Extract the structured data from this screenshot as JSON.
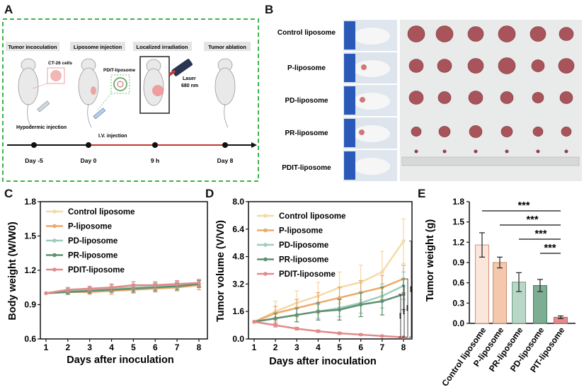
{
  "panels": {
    "a": "A",
    "b": "B",
    "c": "C",
    "d": "D",
    "e": "E"
  },
  "schematic": {
    "stages": [
      "Tumor incoculation",
      "Liposome injection",
      "Localized irradiation",
      "Tumor ablation"
    ],
    "cells_label": "CT-26 cells",
    "liposome_label": "PDIT-liposome",
    "laser_label": "Laser",
    "laser_wavelength": "680 nm",
    "hypodermic_label": "Hypodermic injection",
    "iv_label": "I.V. injection",
    "timeline": [
      "Day -5",
      "Day 0",
      "9 h",
      "Day 8"
    ]
  },
  "photo_panel": {
    "groups": [
      "Control liposome",
      "P-liposome",
      "PD-liposome",
      "PR-liposome",
      "PDIT-liposome"
    ]
  },
  "colors": {
    "control": "#f6d9a6",
    "p": "#eca96b",
    "pd": "#9fcdb8",
    "pr": "#5f9072",
    "pdit": "#e28a8a",
    "frame_green": "#3db34a",
    "timeline_red": "#c0392b"
  },
  "chart_data": [
    {
      "type": "line",
      "xlabel": "Days after inoculation",
      "ylabel": "Body weight (W/W0)",
      "x": [
        1,
        2,
        3,
        4,
        5,
        6,
        7,
        8
      ],
      "ylim": [
        0.6,
        1.8
      ],
      "yticks": [
        "0.6",
        "0.9",
        "1.2",
        "1.5",
        "1.8"
      ],
      "legend": "top-left",
      "series": [
        {
          "name": "Control liposome",
          "values": [
            1.0,
            1.01,
            1.02,
            1.03,
            1.04,
            1.05,
            1.06,
            1.07
          ],
          "err": [
            0.0,
            0.02,
            0.02,
            0.03,
            0.03,
            0.03,
            0.04,
            0.04
          ]
        },
        {
          "name": "P-liposome",
          "values": [
            1.0,
            1.01,
            1.01,
            1.02,
            1.03,
            1.04,
            1.05,
            1.07
          ],
          "err": [
            0.0,
            0.02,
            0.02,
            0.03,
            0.03,
            0.03,
            0.03,
            0.04
          ]
        },
        {
          "name": "PD-liposome",
          "values": [
            1.0,
            1.02,
            1.03,
            1.04,
            1.05,
            1.06,
            1.07,
            1.08
          ],
          "err": [
            0.0,
            0.02,
            0.02,
            0.03,
            0.03,
            0.03,
            0.03,
            0.03
          ]
        },
        {
          "name": "PR-liposome",
          "values": [
            1.0,
            1.01,
            1.02,
            1.03,
            1.04,
            1.05,
            1.06,
            1.08
          ],
          "err": [
            0.0,
            0.02,
            0.02,
            0.02,
            0.03,
            0.03,
            0.03,
            0.03
          ]
        },
        {
          "name": "PDIT-liposome",
          "values": [
            1.0,
            1.03,
            1.04,
            1.05,
            1.07,
            1.07,
            1.08,
            1.09
          ],
          "err": [
            0.0,
            0.02,
            0.02,
            0.03,
            0.03,
            0.03,
            0.03,
            0.03
          ]
        }
      ]
    },
    {
      "type": "line",
      "xlabel": "Days after inoculation",
      "ylabel": "Tumor volume (V/V0)",
      "x": [
        1,
        2,
        3,
        4,
        5,
        6,
        7,
        8
      ],
      "ylim": [
        0.0,
        8.0
      ],
      "yticks": [
        "0.0",
        "1.6",
        "3.2",
        "4.8",
        "6.4",
        "8.0"
      ],
      "legend": "top-left",
      "significance": [
        "***",
        "***",
        "***",
        "***"
      ],
      "series": [
        {
          "name": "Control liposome",
          "values": [
            1.0,
            1.6,
            2.1,
            2.5,
            3.0,
            3.3,
            3.9,
            5.7
          ],
          "err": [
            0.0,
            0.6,
            0.7,
            0.8,
            0.9,
            1.0,
            1.2,
            1.3
          ]
        },
        {
          "name": "P-liposome",
          "values": [
            1.0,
            1.5,
            1.8,
            2.1,
            2.4,
            2.7,
            3.0,
            3.5
          ],
          "err": [
            0.0,
            0.4,
            0.5,
            0.6,
            0.6,
            0.7,
            0.7,
            0.8
          ]
        },
        {
          "name": "PD-liposome",
          "values": [
            1.0,
            1.2,
            1.4,
            1.6,
            1.8,
            2.1,
            2.5,
            3.1
          ],
          "err": [
            0.0,
            0.3,
            0.4,
            0.4,
            0.5,
            0.6,
            0.7,
            0.8
          ]
        },
        {
          "name": "PR-liposome",
          "values": [
            1.0,
            1.2,
            1.4,
            1.6,
            1.7,
            2.0,
            2.2,
            2.6
          ],
          "err": [
            0.0,
            0.3,
            0.4,
            0.5,
            0.6,
            0.7,
            0.8,
            0.9
          ]
        },
        {
          "name": "PDIT-liposome",
          "values": [
            1.0,
            0.8,
            0.6,
            0.45,
            0.33,
            0.25,
            0.17,
            0.1
          ],
          "err": [
            0.0,
            0.1,
            0.08,
            0.07,
            0.06,
            0.05,
            0.04,
            0.03
          ]
        }
      ]
    },
    {
      "type": "bar",
      "ylabel": "Tumor weight (g)",
      "categories": [
        "Control liposome",
        "P-liposome",
        "PR-liposome",
        "PD-liposome",
        "PIT-liposome"
      ],
      "values": [
        1.16,
        0.9,
        0.61,
        0.56,
        0.09
      ],
      "err": [
        0.18,
        0.08,
        0.14,
        0.09,
        0.02
      ],
      "ylim": [
        0.0,
        1.8
      ],
      "yticks": [
        "0.0",
        "0.3",
        "0.6",
        "0.9",
        "1.2",
        "1.5",
        "1.8"
      ],
      "significance": [
        "***",
        "***",
        "***",
        "***"
      ]
    }
  ]
}
